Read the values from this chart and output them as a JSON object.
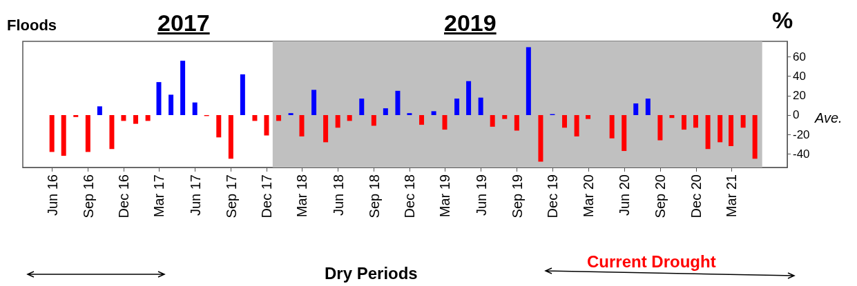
{
  "chart_data": {
    "type": "bar",
    "x": [
      "2016-06",
      "2016-07",
      "2016-08",
      "2016-09",
      "2016-10",
      "2016-11",
      "2016-12",
      "2017-01",
      "2017-02",
      "2017-03",
      "2017-04",
      "2017-05",
      "2017-06",
      "2017-07",
      "2017-08",
      "2017-09",
      "2017-10",
      "2017-11",
      "2017-12",
      "2018-01",
      "2018-02",
      "2018-03",
      "2018-04",
      "2018-05",
      "2018-06",
      "2018-07",
      "2018-08",
      "2018-09",
      "2018-10",
      "2018-11",
      "2018-12",
      "2019-01",
      "2019-02",
      "2019-03",
      "2019-04",
      "2019-05",
      "2019-06",
      "2019-07",
      "2019-08",
      "2019-09",
      "2019-10",
      "2019-11",
      "2019-12",
      "2020-01",
      "2020-02",
      "2020-03",
      "2020-04",
      "2020-05",
      "2020-06",
      "2020-07",
      "2020-08",
      "2020-09",
      "2020-10",
      "2020-11",
      "2020-12",
      "2021-01",
      "2021-02",
      "2021-03",
      "2021-04",
      "2021-05"
    ],
    "values": [
      -38,
      -42,
      -2,
      -38,
      9,
      -35,
      -6,
      -9,
      -6,
      34,
      21,
      56,
      13,
      -1,
      -23,
      -45,
      42,
      -6,
      -21,
      -6,
      2,
      -22,
      26,
      -28,
      -13,
      -6,
      17,
      -11,
      7,
      25,
      2,
      -10,
      4,
      -15,
      17,
      35,
      18,
      -12,
      -4,
      -16,
      70,
      -48,
      1,
      -13,
      -22,
      -4,
      0,
      -24,
      -37,
      12,
      17,
      -26,
      -3,
      -15,
      -13,
      -35,
      -28,
      -32,
      -13,
      -45
    ],
    "colors": [
      "#ff0000",
      "#ff0000",
      "#ff0000",
      "#ff0000",
      "#0000ff",
      "#ff0000",
      "#ff0000",
      "#ff0000",
      "#ff0000",
      "#0000ff",
      "#0000ff",
      "#0000ff",
      "#0000ff",
      "#ff0000",
      "#ff0000",
      "#ff0000",
      "#0000ff",
      "#ff0000",
      "#ff0000",
      "#ff0000",
      "#0000ff",
      "#ff0000",
      "#0000ff",
      "#ff0000",
      "#ff0000",
      "#ff0000",
      "#0000ff",
      "#ff0000",
      "#0000ff",
      "#0000ff",
      "#0000ff",
      "#ff0000",
      "#0000ff",
      "#ff0000",
      "#0000ff",
      "#0000ff",
      "#0000ff",
      "#ff0000",
      "#ff0000",
      "#ff0000",
      "#0000ff",
      "#ff0000",
      "#0000ff",
      "#ff0000",
      "#ff0000",
      "#ff0000",
      "#ff0000",
      "#ff0000",
      "#ff0000",
      "#0000ff",
      "#0000ff",
      "#ff0000",
      "#ff0000",
      "#ff0000",
      "#ff0000",
      "#ff0000",
      "#ff0000",
      "#ff0000",
      "#ff0000",
      "#ff0000"
    ],
    "xlim": [
      "2016-03-18",
      "2021-07-22"
    ],
    "xticks": [
      {
        "value": "2016-06",
        "label": "Jun 16"
      },
      {
        "value": "2016-09",
        "label": "Sep 16"
      },
      {
        "value": "2016-12",
        "label": "Dec 16"
      },
      {
        "value": "2017-03",
        "label": "Mar 17"
      },
      {
        "value": "2017-06",
        "label": "Jun 17"
      },
      {
        "value": "2017-09",
        "label": "Sep 17"
      },
      {
        "value": "2017-12",
        "label": "Dec 17"
      },
      {
        "value": "2018-03",
        "label": "Mar 18"
      },
      {
        "value": "2018-06",
        "label": "Jun 18"
      },
      {
        "value": "2018-09",
        "label": "Sep 18"
      },
      {
        "value": "2018-12",
        "label": "Dec 18"
      },
      {
        "value": "2019-03",
        "label": "Mar 19"
      },
      {
        "value": "2019-06",
        "label": "Jun 19"
      },
      {
        "value": "2019-09",
        "label": "Sep 19"
      },
      {
        "value": "2019-12",
        "label": "Dec 19"
      },
      {
        "value": "2020-03",
        "label": "Mar 20"
      },
      {
        "value": "2020-06",
        "label": "Jun 20"
      },
      {
        "value": "2020-09",
        "label": "Sep 20"
      },
      {
        "value": "2020-12",
        "label": "Dec 20"
      },
      {
        "value": "2021-03",
        "label": "Mar 21"
      }
    ],
    "ylim": [
      -54,
      76
    ],
    "yticks": [
      -40,
      -20,
      0,
      20,
      40,
      60
    ],
    "ylabel": "%",
    "bands": [
      {
        "axis": "x",
        "from": "2017-12-16",
        "to": "2021-05-19",
        "color": "#c0c0c0"
      }
    ],
    "annotations": [
      "Floods",
      "2017",
      "2019",
      "Ave.",
      "Dry Periods",
      "Current Drought"
    ],
    "grid": false
  }
}
